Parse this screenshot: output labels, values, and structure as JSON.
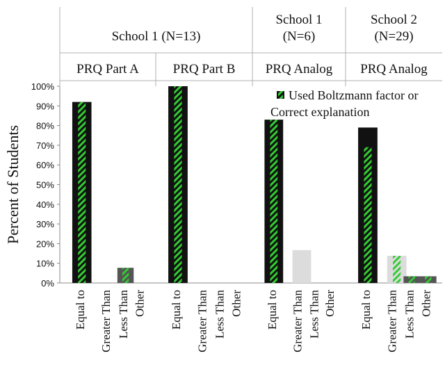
{
  "chart_data": {
    "type": "bar",
    "ylabel": "Percent of Students",
    "ylim": [
      0,
      100
    ],
    "yticks": [
      "0%",
      "10%",
      "20%",
      "30%",
      "40%",
      "50%",
      "60%",
      "70%",
      "80%",
      "90%",
      "100%"
    ],
    "header_rows": {
      "schools": [
        "School 1 (N=13)",
        "School 1\n(N=6)",
        "School 2\n(N=29)"
      ],
      "parts": [
        "PRQ Part A",
        "PRQ Part B",
        "PRQ Analog",
        "PRQ Analog"
      ]
    },
    "categories": [
      "Equal to",
      "Greater Than",
      "Less Than",
      "Other"
    ],
    "groups": [
      {
        "school": "School 1 (N=13)",
        "part": "PRQ Part A",
        "values": [
          92,
          0,
          7.7,
          0
        ],
        "hatched": [
          92,
          0,
          7.7,
          0
        ]
      },
      {
        "school": "School 1 (N=13)",
        "part": "PRQ Part B",
        "values": [
          100,
          0,
          0,
          0
        ],
        "hatched": [
          100,
          0,
          0,
          0
        ]
      },
      {
        "school": "School 1 (N=6)",
        "part": "PRQ Analog",
        "values": [
          83,
          16.7,
          0,
          0
        ],
        "hatched": [
          83,
          0,
          0,
          0
        ]
      },
      {
        "school": "School 2 (N=29)",
        "part": "PRQ Analog",
        "values": [
          79,
          13.8,
          3.4,
          3.4
        ],
        "hatched": [
          69,
          13.8,
          3.4,
          3.4
        ]
      }
    ],
    "legend": {
      "label": "Used Boltzmann factor or\nCorrect explanation",
      "position": "top-right"
    },
    "colors": {
      "dark_bar": "#111111",
      "light_bar": "#dcdcdc",
      "mid_bar": "#555555",
      "hatch_green": "#33cc33"
    }
  }
}
